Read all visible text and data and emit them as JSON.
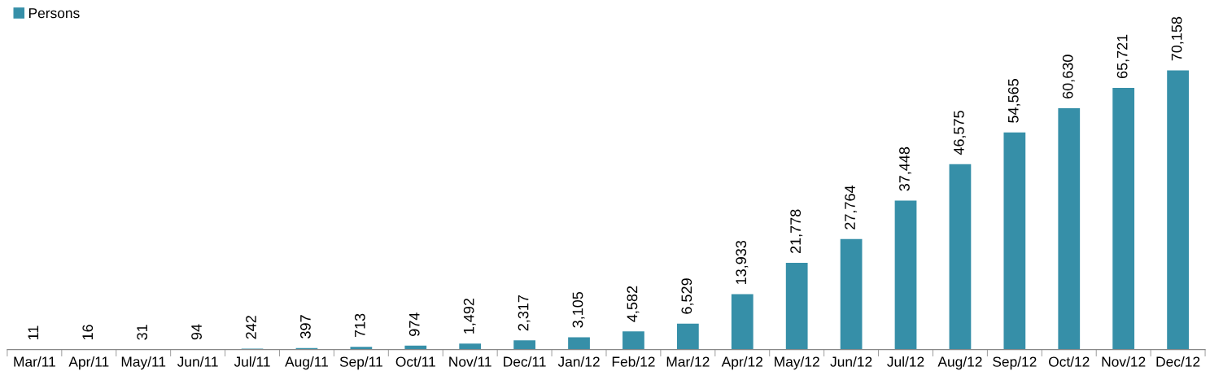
{
  "chart_data": {
    "type": "bar",
    "categories": [
      "Mar/11",
      "Apr/11",
      "May/11",
      "Jun/11",
      "Jul/11",
      "Aug/11",
      "Sep/11",
      "Oct/11",
      "Nov/11",
      "Dec/11",
      "Jan/12",
      "Feb/12",
      "Mar/12",
      "Apr/12",
      "May/12",
      "Jun/12",
      "Jul/12",
      "Aug/12",
      "Sep/12",
      "Oct/12",
      "Nov/12",
      "Dec/12"
    ],
    "series": [
      {
        "name": "Persons",
        "color": "#368fa8",
        "values": [
          11,
          16,
          31,
          94,
          242,
          397,
          713,
          974,
          1492,
          2317,
          3105,
          4582,
          6529,
          13933,
          21778,
          27764,
          37448,
          46575,
          54565,
          60630,
          65721,
          70158
        ],
        "value_labels": [
          "11",
          "16",
          "31",
          "94",
          "242",
          "397",
          "713",
          "974",
          "1,492",
          "2,317",
          "3,105",
          "4,582",
          "6,529",
          "13,933",
          "21,778",
          "27,764",
          "37,448",
          "46,575",
          "54,565",
          "60,630",
          "65,721",
          "70,158"
        ]
      }
    ],
    "legend": "top left",
    "grid": false
  }
}
